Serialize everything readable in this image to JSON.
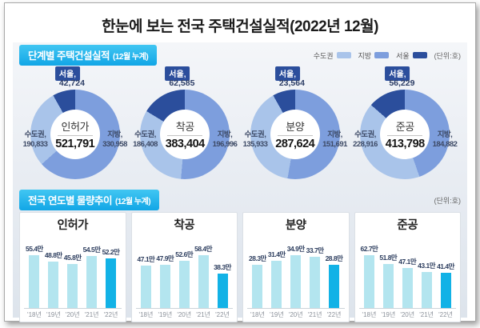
{
  "title": "한눈에 보는 전국 주택건설실적(2022년 12월)",
  "section_stage": {
    "badge": "단계별 주택건설실적",
    "badge_note": "(12월 누계)",
    "unit": "(단위:호)",
    "legend": [
      {
        "label": "수도권",
        "color": "#a9c4ea"
      },
      {
        "label": "지방",
        "color": "#7d9edd"
      },
      {
        "label": "서울",
        "color": "#2b4e9c"
      }
    ]
  },
  "section_trend": {
    "badge": "전국 연도별 물량추이",
    "badge_note": "(12월 누계)",
    "unit": "(단위:호)"
  },
  "chart_data": {
    "donuts": [
      {
        "type": "donut",
        "title": "인허가",
        "total": 521791,
        "total_label": "521,791",
        "seoul_name": "서울,",
        "seoul": 42724,
        "seoul_label": "42,724",
        "sudogwon_name": "수도권,",
        "sudogwon": 190833,
        "sudogwon_label": "190,833",
        "jibang_name": "지방,",
        "jibang": 330958,
        "jibang_label": "330,958"
      },
      {
        "type": "donut",
        "title": "착공",
        "total": 383404,
        "total_label": "383,404",
        "seoul_name": "서울,",
        "seoul": 62585,
        "seoul_label": "62,585",
        "sudogwon_name": "수도권,",
        "sudogwon": 186408,
        "sudogwon_label": "186,408",
        "jibang_name": "지방,",
        "jibang": 196996,
        "jibang_label": "196,996"
      },
      {
        "type": "donut",
        "title": "분양",
        "total": 287624,
        "total_label": "287,624",
        "seoul_name": "서울,",
        "seoul": 23564,
        "seoul_label": "23,564",
        "sudogwon_name": "수도권,",
        "sudogwon": 135933,
        "sudogwon_label": "135,933",
        "jibang_name": "지방,",
        "jibang": 151691,
        "jibang_label": "151,691"
      },
      {
        "type": "donut",
        "title": "준공",
        "total": 413798,
        "total_label": "413,798",
        "seoul_name": "서울,",
        "seoul": 56229,
        "seoul_label": "56,229",
        "sudogwon_name": "수도권,",
        "sudogwon": 228916,
        "sudogwon_label": "228,916",
        "jibang_name": "지방,",
        "jibang": 184882,
        "jibang_label": "184,882"
      }
    ],
    "categories": [
      "'18년",
      "'19년",
      "'20년",
      "'21년",
      "'22년"
    ],
    "bar_charts": [
      {
        "type": "bar",
        "title": "인허가",
        "values": [
          55.4,
          48.8,
          45.8,
          54.5,
          52.2
        ],
        "labels": [
          "55.4만",
          "48.8만",
          "45.8만",
          "54.5만",
          "52.2만"
        ],
        "highlight_index": 4
      },
      {
        "type": "bar",
        "title": "착공",
        "values": [
          47.1,
          47.9,
          52.6,
          58.4,
          38.3
        ],
        "labels": [
          "47.1만",
          "47.9만",
          "52.6만",
          "58.4만",
          "38.3만"
        ],
        "highlight_index": 4
      },
      {
        "type": "bar",
        "title": "분양",
        "values": [
          28.3,
          31.4,
          34.9,
          33.7,
          28.8
        ],
        "labels": [
          "28.3만",
          "31.4만",
          "34.9만",
          "33.7만",
          "28.8만"
        ],
        "highlight_index": 4
      },
      {
        "type": "bar",
        "title": "준공",
        "values": [
          62.7,
          51.8,
          47.1,
          43.1,
          41.4
        ],
        "labels": [
          "62.7만",
          "51.8만",
          "47.1만",
          "43.1만",
          "41.4만"
        ],
        "highlight_index": 4
      }
    ],
    "bar_colors": {
      "normal": "#b3e5ef",
      "highlight": "#12b2e6"
    }
  }
}
